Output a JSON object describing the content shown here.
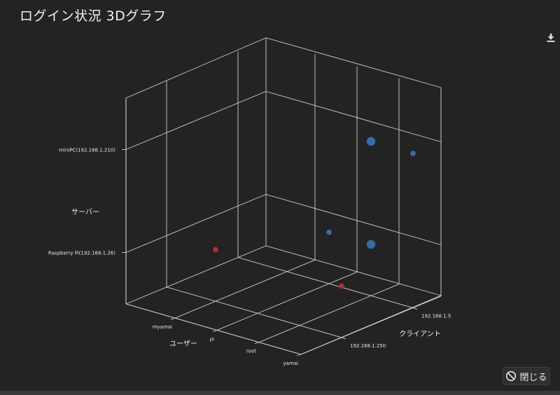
{
  "title": "ログイン状況 3Dグラフ",
  "close_label": "閉じる",
  "icons": {
    "download": "download-icon",
    "close": "prohibited-icon"
  },
  "colors": {
    "background": "#232323",
    "blue": "#2e6fae",
    "red": "#c0282b",
    "grid": "#cfcfcf"
  },
  "chart_data": {
    "type": "scatter",
    "dimensions": 3,
    "axes": {
      "x": {
        "label": "ユーザー",
        "ticks": [
          "myamai",
          "pi",
          "root",
          "yamai"
        ]
      },
      "y": {
        "label": "クライアント",
        "ticks": [
          "192.168.1.250",
          "192.168.1.5"
        ]
      },
      "z": {
        "label": "サーバー",
        "ticks": [
          "Raspberry Pi(192.168.1.26)",
          "miniPC(192.168.1.210)"
        ]
      }
    },
    "points": [
      {
        "x": "root",
        "y": "192.168.1.5",
        "z": "miniPC(192.168.1.210)",
        "color": "blue",
        "size": "large"
      },
      {
        "x": "root",
        "y": "192.168.1.5",
        "z": "Raspberry Pi(192.168.1.26)",
        "color": "blue",
        "size": "large"
      },
      {
        "x": "yamai",
        "y": "192.168.1.5",
        "z": "miniPC(192.168.1.210)",
        "color": "blue",
        "size": "small"
      },
      {
        "x": "pi",
        "y": "192.168.1.5",
        "z": "Raspberry Pi(192.168.1.26)",
        "color": "blue",
        "size": "small"
      },
      {
        "x": "myamai",
        "y": "192.168.1.250",
        "z": "Raspberry Pi(192.168.1.26)",
        "color": "red",
        "size": "small"
      },
      {
        "x": "yamai",
        "y": "192.168.1.250",
        "z": "Raspberry Pi(192.168.1.26)",
        "color": "red",
        "size": "small"
      }
    ]
  }
}
